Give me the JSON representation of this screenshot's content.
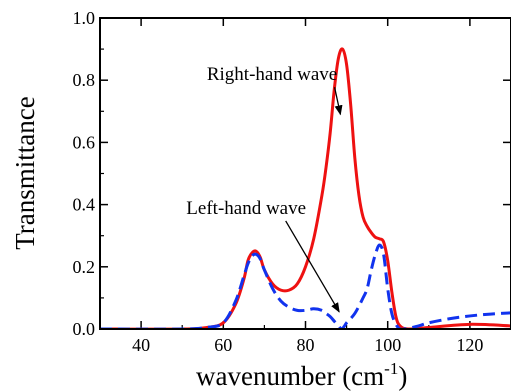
{
  "chart_data": {
    "type": "line",
    "xlabel": "wavenumber (cm",
    "xlabel_sup": "-1",
    "xlabel_close": ")",
    "ylabel": "Transmittance",
    "xlim": [
      30,
      130
    ],
    "ylim": [
      0.0,
      1.0
    ],
    "x_ticks": [
      40,
      60,
      80,
      100,
      120
    ],
    "x_tick_labels": [
      "40",
      "60",
      "80",
      "100",
      "120"
    ],
    "y_ticks": [
      0.0,
      0.2,
      0.4,
      0.6,
      0.8,
      1.0
    ],
    "y_tick_labels": [
      "0.0",
      "0.2",
      "0.4",
      "0.6",
      "0.8",
      "1.0"
    ],
    "grid": false,
    "series": [
      {
        "name": "Right-hand wave",
        "color": "#ee1111",
        "style": "solid",
        "x": [
          30,
          50,
          56,
          60,
          63,
          65,
          66,
          67,
          68,
          69,
          70,
          72,
          74,
          76,
          78,
          80,
          82,
          84,
          85,
          86,
          87,
          88,
          89,
          90,
          91,
          92,
          93,
          94,
          95,
          96,
          97,
          98,
          99,
          100,
          101,
          102,
          103,
          105,
          110,
          120,
          130
        ],
        "values": [
          0.0,
          0.0,
          0.005,
          0.02,
          0.08,
          0.16,
          0.22,
          0.245,
          0.25,
          0.23,
          0.19,
          0.145,
          0.125,
          0.125,
          0.145,
          0.2,
          0.29,
          0.43,
          0.52,
          0.63,
          0.77,
          0.87,
          0.9,
          0.85,
          0.72,
          0.55,
          0.43,
          0.36,
          0.33,
          0.31,
          0.295,
          0.29,
          0.28,
          0.22,
          0.12,
          0.04,
          0.01,
          0.0,
          0.005,
          0.015,
          0.01
        ]
      },
      {
        "name": "Left-hand wave",
        "color": "#1133ee",
        "style": "dashed",
        "x": [
          30,
          50,
          56,
          60,
          63,
          65,
          66,
          67,
          68,
          69,
          70,
          72,
          74,
          76,
          78,
          80,
          82,
          84,
          85,
          86,
          87,
          88,
          88.8,
          89.5,
          90,
          92,
          94,
          95,
          96,
          97,
          98,
          99,
          100,
          101,
          102,
          103,
          104,
          106,
          108,
          110,
          115,
          120,
          125,
          130
        ],
        "values": [
          0.0,
          0.0,
          0.005,
          0.02,
          0.09,
          0.17,
          0.21,
          0.235,
          0.24,
          0.225,
          0.19,
          0.13,
          0.09,
          0.07,
          0.06,
          0.06,
          0.065,
          0.06,
          0.05,
          0.04,
          0.025,
          0.01,
          0.0,
          0.01,
          0.02,
          0.05,
          0.1,
          0.13,
          0.19,
          0.24,
          0.27,
          0.24,
          0.13,
          0.05,
          0.015,
          0.0,
          0.0,
          0.005,
          0.012,
          0.02,
          0.033,
          0.042,
          0.048,
          0.052
        ]
      }
    ],
    "annotations": [
      {
        "text": "Right-hand wave",
        "x": 56,
        "y": 0.8,
        "arrow_to": [
          88.5,
          0.69
        ]
      },
      {
        "text": "Left-hand wave",
        "x": 51,
        "y": 0.37,
        "arrow_to": [
          88.2,
          0.055
        ]
      }
    ]
  }
}
